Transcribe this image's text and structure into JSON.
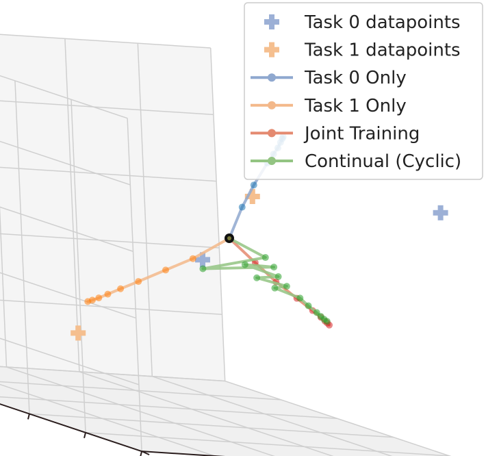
{
  "chart_data": {
    "type": "scatter",
    "projection": "3d",
    "title": "",
    "xlabel": "",
    "ylabel": "",
    "zlabel": "",
    "grid": true,
    "tick_labels": false,
    "legend": {
      "placement": "top-right",
      "entries": [
        {
          "label": "Task 0 datapoints",
          "marker": "plus",
          "color": "#9cb0d6"
        },
        {
          "label": "Task 1 datapoints",
          "marker": "plus",
          "color": "#f5bf8f"
        },
        {
          "label": "Task 0 Only",
          "marker": "line",
          "color": "#8fa8cf"
        },
        {
          "label": "Task 1 Only",
          "marker": "line",
          "color": "#f3b88a"
        },
        {
          "label": "Joint Training",
          "marker": "line",
          "color": "#e48a70"
        },
        {
          "label": "Continual (Cyclic)",
          "marker": "line",
          "color": "#93c482"
        }
      ]
    },
    "series": [
      {
        "name": "Task 0 datapoints",
        "kind": "points",
        "color": "#9cb0d6",
        "points": [
          [
            -1.9,
            0.4,
            0.5
          ],
          [
            0.45,
            0.2,
            -0.2
          ]
        ]
      },
      {
        "name": "Task 1 datapoints",
        "kind": "points",
        "color": "#f5bf8f",
        "points": [
          [
            -0.1,
            0.2,
            0.5
          ],
          [
            0.9,
            -0.9,
            -1.3
          ]
        ]
      },
      {
        "name": "Task 0 Only",
        "kind": "trajectory",
        "color": "#1f77b4",
        "line_color": "#8fa8cf",
        "points": [
          [
            0,
            0,
            0
          ],
          [
            -0.1,
            0.06,
            0.35
          ],
          [
            -0.2,
            0.1,
            0.6
          ],
          [
            -0.32,
            0.14,
            0.85
          ],
          [
            -0.38,
            0.15,
            0.95
          ],
          [
            -0.42,
            0.16,
            1.02
          ],
          [
            -0.45,
            0.16,
            1.08
          ],
          [
            -0.47,
            0.16,
            1.12
          ],
          [
            -0.48,
            0.16,
            1.14
          ]
        ]
      },
      {
        "name": "Task 1 Only",
        "kind": "trajectory",
        "color": "#ff7f0e",
        "line_color": "#f3b88a",
        "points": [
          [
            0,
            0,
            0
          ],
          [
            0.35,
            -0.05,
            -0.25
          ],
          [
            0.6,
            -0.1,
            -0.4
          ],
          [
            0.85,
            -0.15,
            -0.55
          ],
          [
            1.0,
            -0.2,
            -0.65
          ],
          [
            1.12,
            -0.22,
            -0.72
          ],
          [
            1.2,
            -0.24,
            -0.77
          ],
          [
            1.26,
            -0.25,
            -0.8
          ],
          [
            1.3,
            -0.26,
            -0.82
          ]
        ]
      },
      {
        "name": "Joint Training",
        "kind": "trajectory",
        "color": "#d62728",
        "line_color": "#e48a70",
        "points": [
          [
            0,
            0,
            0
          ],
          [
            -0.3,
            -0.05,
            -0.25
          ],
          [
            -0.55,
            -0.1,
            -0.45
          ],
          [
            -0.8,
            -0.15,
            -0.62
          ],
          [
            -1.0,
            -0.2,
            -0.75
          ],
          [
            -1.1,
            -0.22,
            -0.82
          ],
          [
            -1.15,
            -0.23,
            -0.86
          ],
          [
            -1.18,
            -0.24,
            -0.88
          ],
          [
            -1.2,
            -0.24,
            -0.9
          ]
        ]
      },
      {
        "name": "Continual (Cyclic)",
        "kind": "trajectory",
        "color": "#2ca02c",
        "line_color": "#93c482",
        "points": [
          [
            0,
            0,
            0
          ],
          [
            -0.45,
            -0.1,
            -0.2
          ],
          [
            0.25,
            -0.05,
            -0.35
          ],
          [
            -0.55,
            -0.12,
            -0.3
          ],
          [
            -0.2,
            -0.06,
            -0.28
          ],
          [
            -0.6,
            -0.13,
            -0.4
          ],
          [
            -0.35,
            -0.1,
            -0.42
          ],
          [
            -0.7,
            -0.15,
            -0.5
          ],
          [
            -0.55,
            -0.12,
            -0.52
          ],
          [
            -0.85,
            -0.17,
            -0.62
          ],
          [
            -0.95,
            -0.19,
            -0.7
          ],
          [
            -1.05,
            -0.21,
            -0.77
          ],
          [
            -1.1,
            -0.22,
            -0.81
          ],
          [
            -1.14,
            -0.23,
            -0.84
          ],
          [
            -1.17,
            -0.23,
            -0.86
          ]
        ]
      }
    ]
  }
}
